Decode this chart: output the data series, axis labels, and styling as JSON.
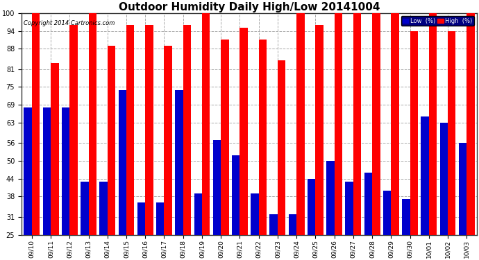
{
  "title": "Outdoor Humidity Daily High/Low 20141004",
  "copyright": "Copyright 2014 Cartronics.com",
  "dates": [
    "09/10",
    "09/11",
    "09/12",
    "09/13",
    "09/14",
    "09/15",
    "09/16",
    "09/17",
    "09/18",
    "09/19",
    "09/20",
    "09/21",
    "09/22",
    "09/23",
    "09/24",
    "09/25",
    "09/26",
    "09/27",
    "09/28",
    "09/29",
    "09/30",
    "10/01",
    "10/02",
    "10/03"
  ],
  "high": [
    100,
    83,
    96,
    100,
    89,
    96,
    96,
    89,
    96,
    100,
    91,
    95,
    91,
    84,
    100,
    96,
    100,
    100,
    100,
    100,
    94,
    100,
    94,
    100
  ],
  "low": [
    68,
    68,
    68,
    43,
    43,
    74,
    36,
    36,
    74,
    39,
    57,
    52,
    39,
    32,
    32,
    44,
    50,
    43,
    46,
    40,
    37,
    65,
    63,
    56
  ],
  "high_color": "#ff0000",
  "low_color": "#0000cc",
  "bg_color": "#ffffff",
  "plot_bg_color": "#ffffff",
  "grid_color": "#aaaaaa",
  "ylim_min": 25,
  "ylim_max": 100,
  "yticks": [
    25,
    31,
    38,
    44,
    50,
    56,
    63,
    69,
    75,
    81,
    88,
    94,
    100
  ],
  "title_fontsize": 11,
  "bar_width": 0.42,
  "legend_low_label": "Low  (%)",
  "legend_high_label": "High  (%)"
}
